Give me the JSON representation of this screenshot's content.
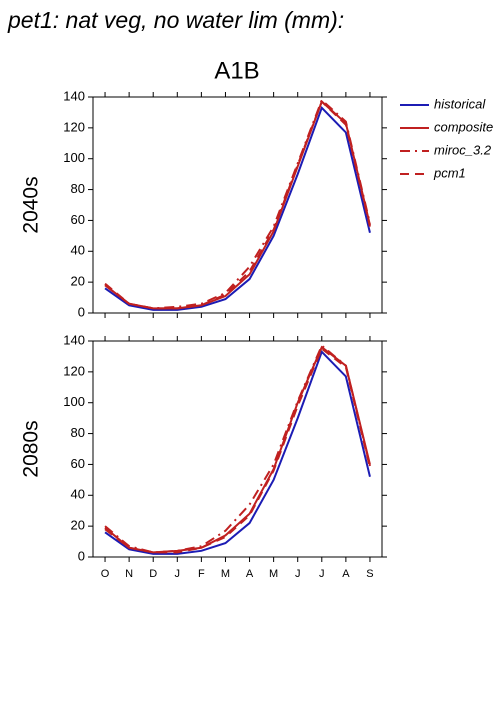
{
  "title": "pet1: nat veg, no water lim (mm):",
  "subtitle": "A1B",
  "chart_data": [
    {
      "type": "line",
      "ylabel": "2040s",
      "ylim": [
        0,
        140
      ],
      "yticks": [
        0,
        20,
        40,
        60,
        80,
        100,
        120,
        140
      ],
      "legend": "right",
      "series": [
        {
          "name": "historical",
          "color": "#1c1cb4",
          "style": "solid",
          "values": [
            16,
            5,
            2,
            2,
            4,
            9,
            22,
            50,
            90,
            133,
            117,
            52
          ]
        },
        {
          "name": "composite",
          "color": "#c02020",
          "style": "solid",
          "values": [
            18,
            6,
            3,
            3,
            5,
            11,
            25,
            53,
            95,
            137,
            123,
            57
          ]
        },
        {
          "name": "miroc_3.2",
          "color": "#c02020",
          "style": "dash-dot",
          "values": [
            18,
            6,
            3,
            4,
            6,
            13,
            30,
            56,
            97,
            138,
            124,
            58
          ]
        },
        {
          "name": "pcm1",
          "color": "#c02020",
          "style": "dash",
          "values": [
            19,
            6,
            3,
            3,
            5,
            12,
            27,
            54,
            96,
            137,
            122,
            56
          ]
        }
      ]
    },
    {
      "type": "line",
      "ylabel": "2080s",
      "ylim": [
        0,
        140
      ],
      "yticks": [
        0,
        20,
        40,
        60,
        80,
        100,
        120,
        140
      ],
      "categories": [
        "O",
        "N",
        "D",
        "J",
        "F",
        "M",
        "A",
        "M",
        "J",
        "J",
        "A",
        "S"
      ],
      "series": [
        {
          "name": "historical",
          "color": "#1c1cb4",
          "style": "solid",
          "values": [
            16,
            5,
            2,
            2,
            4,
            9,
            22,
            50,
            90,
            133,
            117,
            52
          ]
        },
        {
          "name": "composite",
          "color": "#c02020",
          "style": "solid",
          "values": [
            19,
            6,
            3,
            4,
            6,
            14,
            28,
            57,
            100,
            136,
            124,
            60
          ]
        },
        {
          "name": "miroc_3.2",
          "color": "#c02020",
          "style": "dash-dot",
          "values": [
            20,
            7,
            3,
            4,
            7,
            17,
            34,
            60,
            101,
            137,
            124,
            59
          ]
        },
        {
          "name": "pcm1",
          "color": "#c02020",
          "style": "dash",
          "values": [
            18,
            6,
            3,
            3,
            6,
            13,
            27,
            56,
            98,
            135,
            123,
            58
          ]
        }
      ]
    }
  ]
}
